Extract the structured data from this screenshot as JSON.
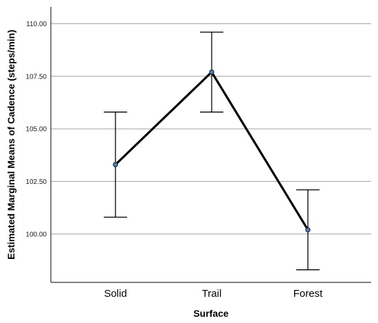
{
  "chart_data": {
    "type": "line",
    "categories": [
      "Solid",
      "Trail",
      "Forest"
    ],
    "series": [
      {
        "values": [
          103.3,
          107.7,
          100.2
        ],
        "error_low": [
          100.8,
          105.8,
          98.3
        ],
        "error_high": [
          105.8,
          109.6,
          102.1
        ]
      }
    ],
    "xlabel": "Surface",
    "ylabel": "Estimated Marginal Means of Cadence (steps/min)",
    "yticks": [
      "100.00",
      "102.50",
      "105.00",
      "107.50",
      "110.00"
    ],
    "ylim": [
      97.7,
      110.8
    ],
    "grid": "horizontal",
    "colors": {
      "line": "#000000",
      "marker": "#4a7fc1",
      "grid": "#a0a0a0"
    }
  }
}
